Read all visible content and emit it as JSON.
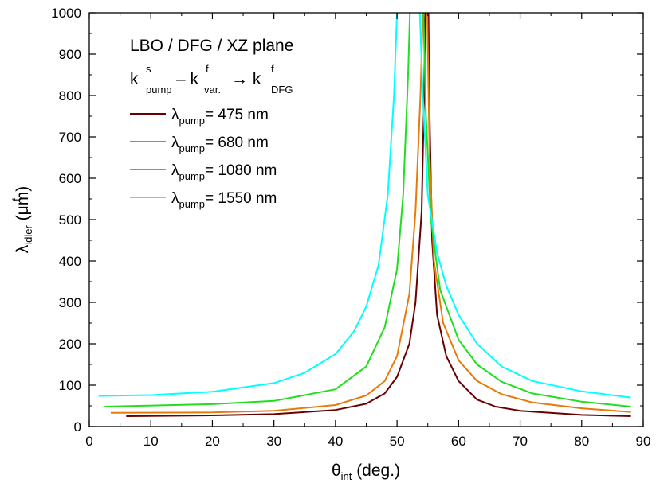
{
  "chart_data": {
    "type": "line",
    "title": "LBO / DFG / XZ plane",
    "process": {
      "k1": "k",
      "k1_sup": "s",
      "k1_sub": "pump",
      "minus": "– k",
      "k2_sup": "f",
      "k2_sub": "var.",
      "arrow": "→ k",
      "k3_sup": "f",
      "k3_sub": "DFG"
    },
    "xlabel": {
      "symbol": "θ",
      "sub": "int",
      "rest": " (deg.)"
    },
    "ylabel": {
      "symbol": "λ",
      "sup": "f",
      "sub": "idler",
      "rest": " (μm)"
    },
    "xlim": [
      0,
      90
    ],
    "ylim": [
      0,
      1000
    ],
    "xticks": [
      "0",
      "10",
      "20",
      "30",
      "40",
      "50",
      "60",
      "70",
      "80",
      "90"
    ],
    "yticks": [
      "0",
      "100",
      "200",
      "300",
      "400",
      "500",
      "600",
      "700",
      "800",
      "900",
      "1000"
    ],
    "legend_prefix": "λ",
    "legend_sub": "pump",
    "series": [
      {
        "name": "= 475 nm",
        "color": "#6b0000",
        "left": [
          [
            6,
            25
          ],
          [
            20,
            27
          ],
          [
            30,
            30
          ],
          [
            40,
            40
          ],
          [
            45,
            55
          ],
          [
            48,
            80
          ],
          [
            50,
            120
          ],
          [
            52,
            200
          ],
          [
            53,
            300
          ],
          [
            54,
            520
          ],
          [
            54.4,
            800
          ],
          [
            54.6,
            1000
          ]
        ],
        "right": [
          [
            55.1,
            1000
          ],
          [
            55.3,
            750
          ],
          [
            55.7,
            450
          ],
          [
            56.5,
            270
          ],
          [
            58,
            170
          ],
          [
            60,
            110
          ],
          [
            63,
            65
          ],
          [
            66,
            48
          ],
          [
            70,
            38
          ],
          [
            80,
            28
          ],
          [
            88,
            25
          ]
        ]
      },
      {
        "name": "= 680 nm",
        "color": "#e87a0a",
        "left": [
          [
            3.5,
            33
          ],
          [
            20,
            34
          ],
          [
            30,
            38
          ],
          [
            40,
            52
          ],
          [
            45,
            75
          ],
          [
            48,
            110
          ],
          [
            50,
            170
          ],
          [
            52,
            320
          ],
          [
            53,
            520
          ],
          [
            53.8,
            800
          ],
          [
            54.2,
            1000
          ]
        ],
        "right": [
          [
            54.9,
            1000
          ],
          [
            55.3,
            650
          ],
          [
            56,
            400
          ],
          [
            57.5,
            250
          ],
          [
            60,
            160
          ],
          [
            63,
            110
          ],
          [
            67,
            78
          ],
          [
            72,
            58
          ],
          [
            80,
            44
          ],
          [
            88,
            35
          ]
        ]
      },
      {
        "name": "= 1080 nm",
        "color": "#22dd22",
        "left": [
          [
            2.5,
            48
          ],
          [
            20,
            54
          ],
          [
            30,
            62
          ],
          [
            40,
            90
          ],
          [
            45,
            145
          ],
          [
            48,
            240
          ],
          [
            50,
            380
          ],
          [
            51,
            560
          ],
          [
            51.8,
            850
          ],
          [
            52.1,
            1000
          ]
        ],
        "right": [
          [
            54.3,
            1000
          ],
          [
            54.7,
            750
          ],
          [
            55.5,
            500
          ],
          [
            57,
            330
          ],
          [
            60,
            210
          ],
          [
            63,
            150
          ],
          [
            67,
            108
          ],
          [
            72,
            80
          ],
          [
            80,
            60
          ],
          [
            88,
            48
          ]
        ]
      },
      {
        "name": "= 1550 nm",
        "color": "#00ffff",
        "left": [
          [
            1.5,
            74
          ],
          [
            10,
            76
          ],
          [
            20,
            84
          ],
          [
            30,
            105
          ],
          [
            35,
            130
          ],
          [
            40,
            175
          ],
          [
            43,
            230
          ],
          [
            45,
            290
          ],
          [
            47,
            390
          ],
          [
            48.5,
            560
          ],
          [
            49.5,
            800
          ],
          [
            50,
            1000
          ]
        ],
        "right": [
          [
            53.7,
            1000
          ],
          [
            54.2,
            800
          ],
          [
            55,
            560
          ],
          [
            56.5,
            420
          ],
          [
            58,
            340
          ],
          [
            60,
            270
          ],
          [
            63,
            200
          ],
          [
            67,
            145
          ],
          [
            72,
            110
          ],
          [
            80,
            85
          ],
          [
            88,
            70
          ]
        ]
      }
    ]
  }
}
